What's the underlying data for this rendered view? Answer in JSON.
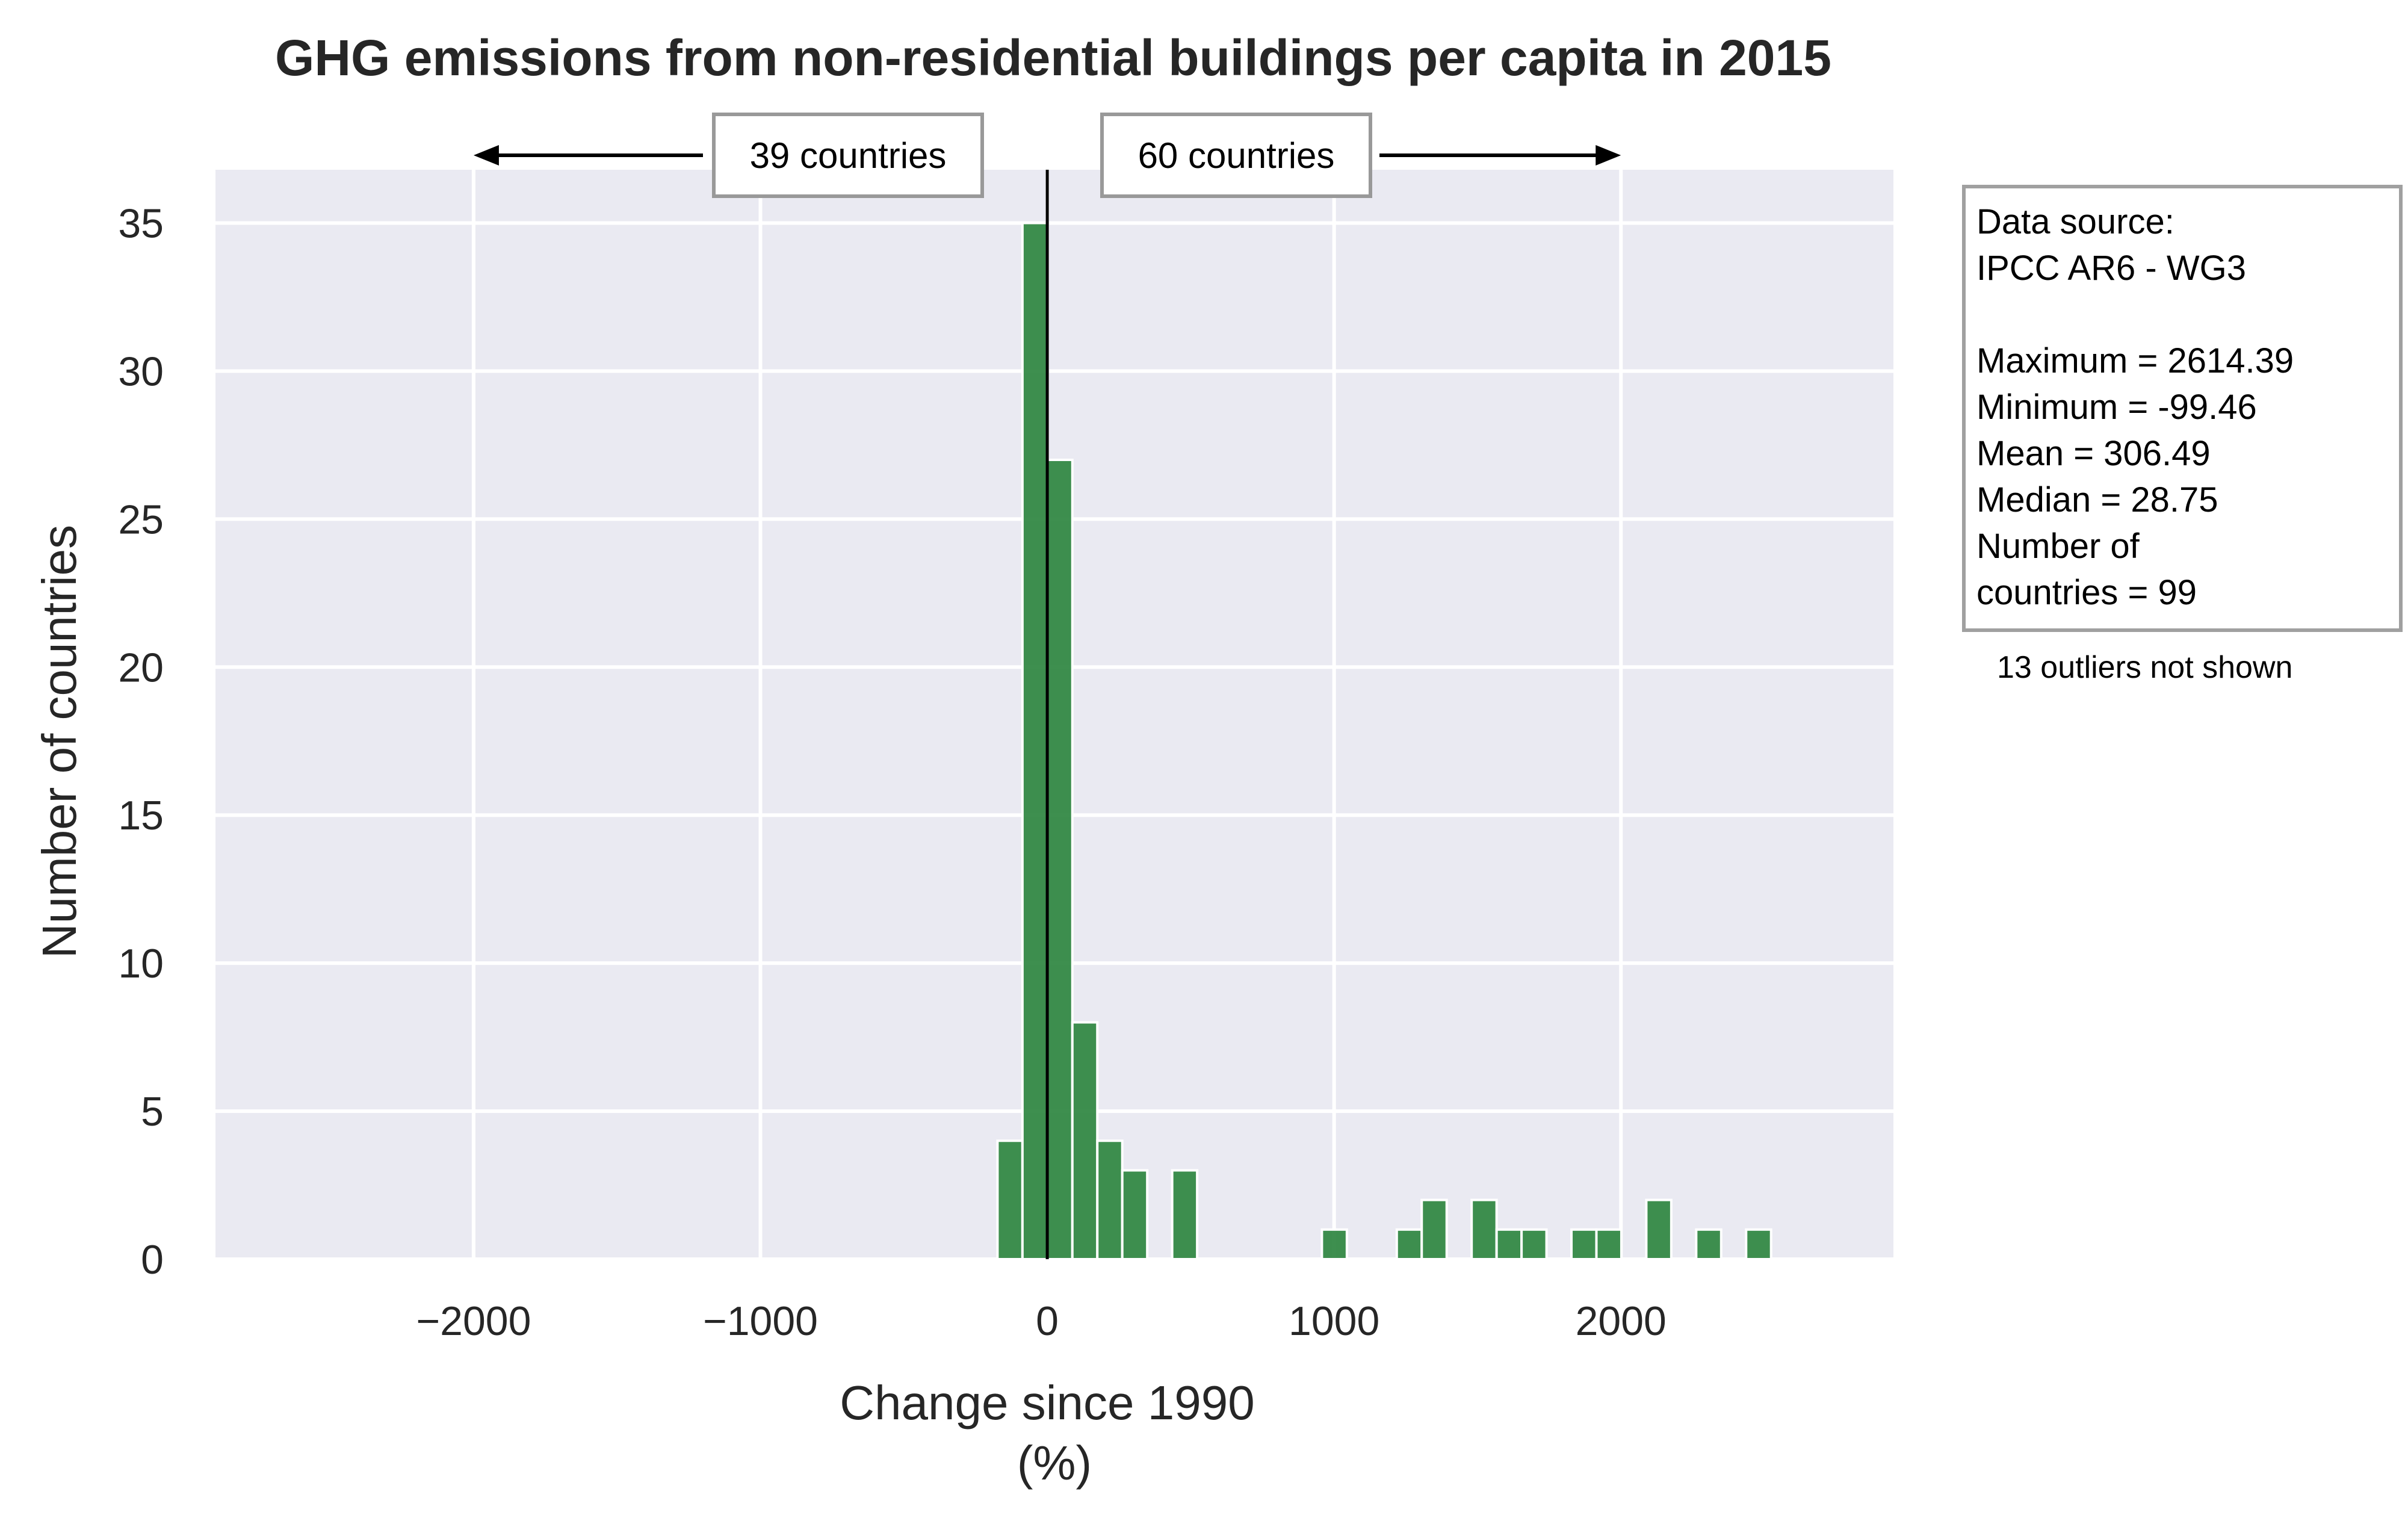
{
  "chart_data": {
    "type": "bar",
    "title": "GHG emissions from non-residential buildings per capita in 2015",
    "xlabel": "Change since 1990",
    "xlabel_unit": "(%)",
    "ylabel": "Number of countries",
    "xlim": [
      -2900,
      2950
    ],
    "ylim": [
      0,
      36.8
    ],
    "x_ticks": [
      -2000,
      -1000,
      0,
      1000,
      2000
    ],
    "x_tick_labels": [
      "−2000",
      "−1000",
      "0",
      "1000",
      "2000"
    ],
    "y_ticks": [
      0,
      5,
      10,
      15,
      20,
      25,
      30,
      35
    ],
    "y_tick_labels": [
      "0",
      "5",
      "10",
      "15",
      "20",
      "25",
      "30",
      "35"
    ],
    "grid": true,
    "bar_color": "#2e8540",
    "background_color": "#eaeaf2",
    "bin_width": 87,
    "bins": [
      {
        "center": -130,
        "count": 4
      },
      {
        "center": -43,
        "count": 35
      },
      {
        "center": 44,
        "count": 27
      },
      {
        "center": 131,
        "count": 8
      },
      {
        "center": 218,
        "count": 4
      },
      {
        "center": 305,
        "count": 3
      },
      {
        "center": 479,
        "count": 3
      },
      {
        "center": 1001,
        "count": 1
      },
      {
        "center": 1262,
        "count": 1
      },
      {
        "center": 1349,
        "count": 2
      },
      {
        "center": 1523,
        "count": 2
      },
      {
        "center": 1610,
        "count": 1
      },
      {
        "center": 1697,
        "count": 1
      },
      {
        "center": 1871,
        "count": 1
      },
      {
        "center": 1958,
        "count": 1
      },
      {
        "center": 2132,
        "count": 2
      },
      {
        "center": 2306,
        "count": 1
      },
      {
        "center": 2480,
        "count": 1
      }
    ],
    "reference_line_x": 0,
    "annotations": {
      "left_count_label": "39 countries",
      "right_count_label": "60 countries",
      "left_arrow_to_x": -2000,
      "right_arrow_to_x": 2000
    },
    "info_box": {
      "lines": [
        "Data source:",
        " IPCC AR6 - WG3",
        "",
        " Maximum  = 2614.39",
        " Minimum   = -99.46",
        " Mean       = 306.49",
        " Median     = 28.75",
        " Number of",
        " countries  = 99"
      ],
      "note": "13 outliers not shown"
    }
  }
}
